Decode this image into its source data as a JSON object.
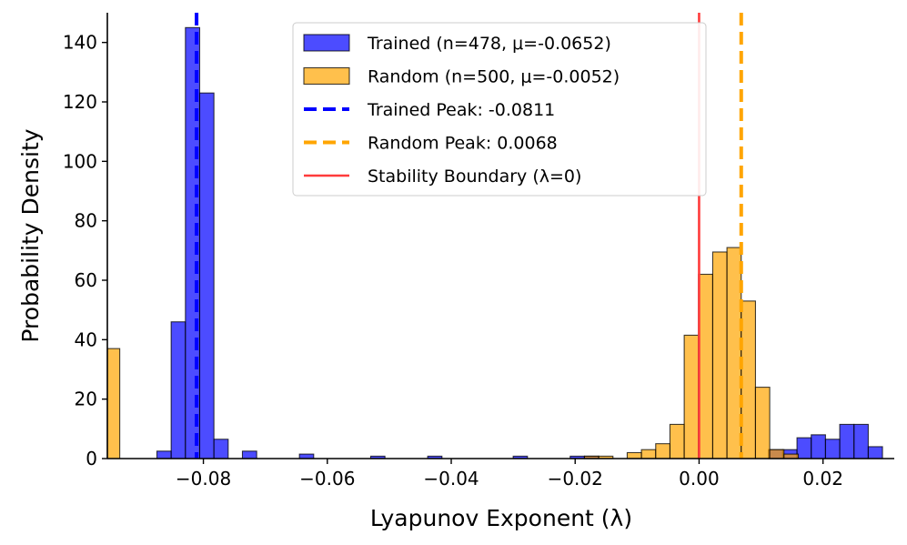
{
  "chart_data": {
    "type": "histogram",
    "title": "",
    "xlabel": "Lyapunov Exponent (λ)",
    "ylabel": "Probability Density",
    "xlim": [
      -0.0955,
      0.0315
    ],
    "ylim": [
      0,
      150
    ],
    "bin_width": 0.0023,
    "x_ticks": [
      -0.08,
      -0.06,
      -0.04,
      -0.02,
      0.0,
      0.02
    ],
    "x_tick_labels": [
      "−0.08",
      "−0.06",
      "−0.04",
      "−0.02",
      "0.00",
      "0.02"
    ],
    "y_ticks": [
      0,
      20,
      40,
      60,
      80,
      100,
      120,
      140
    ],
    "y_tick_labels": [
      "0",
      "20",
      "40",
      "60",
      "80",
      "100",
      "120",
      "140"
    ],
    "series": [
      {
        "name": "Trained (n=478, μ=-0.0652)",
        "color": "#0000ff",
        "bins": [
          {
            "x0": -0.0875,
            "x1": -0.0852,
            "density": 2.5
          },
          {
            "x0": -0.0852,
            "x1": -0.0829,
            "density": 46
          },
          {
            "x0": -0.0829,
            "x1": -0.0806,
            "density": 145
          },
          {
            "x0": -0.0806,
            "x1": -0.0783,
            "density": 123
          },
          {
            "x0": -0.0783,
            "x1": -0.076,
            "density": 6.5
          },
          {
            "x0": -0.0737,
            "x1": -0.0714,
            "density": 2.5
          },
          {
            "x0": -0.0645,
            "x1": -0.0622,
            "density": 1.5
          },
          {
            "x0": -0.053,
            "x1": -0.0507,
            "density": 0.8
          },
          {
            "x0": -0.0438,
            "x1": -0.0415,
            "density": 0.8
          },
          {
            "x0": -0.03,
            "x1": -0.0277,
            "density": 0.8
          },
          {
            "x0": -0.0208,
            "x1": -0.0185,
            "density": 0.8
          },
          {
            "x0": -0.0185,
            "x1": -0.0162,
            "density": 0.8
          },
          {
            "x0": 0.0112,
            "x1": 0.0135,
            "density": 3
          },
          {
            "x0": 0.0135,
            "x1": 0.0158,
            "density": 3
          },
          {
            "x0": 0.0158,
            "x1": 0.0181,
            "density": 7
          },
          {
            "x0": 0.0181,
            "x1": 0.0204,
            "density": 8
          },
          {
            "x0": 0.0204,
            "x1": 0.0227,
            "density": 6.5
          },
          {
            "x0": 0.0227,
            "x1": 0.025,
            "density": 11.5
          },
          {
            "x0": 0.025,
            "x1": 0.0273,
            "density": 11.5
          },
          {
            "x0": 0.0273,
            "x1": 0.0296,
            "density": 4
          }
        ]
      },
      {
        "name": "Random (n=500, μ=-0.0052)",
        "color": "#ffa500",
        "bins": [
          {
            "x0": -0.0975,
            "x1": -0.0935,
            "density": 37
          },
          {
            "x0": -0.0185,
            "x1": -0.0162,
            "density": 0.8
          },
          {
            "x0": -0.0162,
            "x1": -0.0139,
            "density": 0.8
          },
          {
            "x0": -0.0116,
            "x1": -0.0093,
            "density": 2
          },
          {
            "x0": -0.0093,
            "x1": -0.007,
            "density": 3
          },
          {
            "x0": -0.007,
            "x1": -0.0047,
            "density": 5
          },
          {
            "x0": -0.0047,
            "x1": -0.0024,
            "density": 11.5
          },
          {
            "x0": -0.0024,
            "x1": -0.0001,
            "density": 41.5
          },
          {
            "x0": -0.0001,
            "x1": 0.0022,
            "density": 62
          },
          {
            "x0": 0.0022,
            "x1": 0.0045,
            "density": 69.5
          },
          {
            "x0": 0.0045,
            "x1": 0.0068,
            "density": 71
          },
          {
            "x0": 0.0068,
            "x1": 0.0091,
            "density": 53
          },
          {
            "x0": 0.0091,
            "x1": 0.0114,
            "density": 24
          },
          {
            "x0": 0.0114,
            "x1": 0.0137,
            "density": 3
          },
          {
            "x0": 0.0137,
            "x1": 0.016,
            "density": 1.5
          }
        ]
      }
    ],
    "reference_lines": [
      {
        "name": "Trained Peak: -0.0811",
        "x": -0.0811,
        "color": "#0000ff",
        "style": "dashed"
      },
      {
        "name": "Random Peak: 0.0068",
        "x": 0.0068,
        "color": "#ffa500",
        "style": "dashed"
      },
      {
        "name": "Stability Boundary (λ=0)",
        "x": 0.0,
        "color": "#ff3b3b",
        "style": "solid"
      }
    ],
    "legend": {
      "placement": "top-center",
      "entries": [
        {
          "label": "Trained (n=478, μ=-0.0652)",
          "kind": "patch",
          "color": "#0000ff"
        },
        {
          "label": "Random (n=500, μ=-0.0052)",
          "kind": "patch",
          "color": "#ffa500"
        },
        {
          "label": "Trained Peak: -0.0811",
          "kind": "dashed",
          "color": "#0000ff"
        },
        {
          "label": "Random Peak: 0.0068",
          "kind": "dashed",
          "color": "#ffa500"
        },
        {
          "label": "Stability Boundary (λ=0)",
          "kind": "solid",
          "color": "#ff3b3b"
        }
      ]
    }
  }
}
